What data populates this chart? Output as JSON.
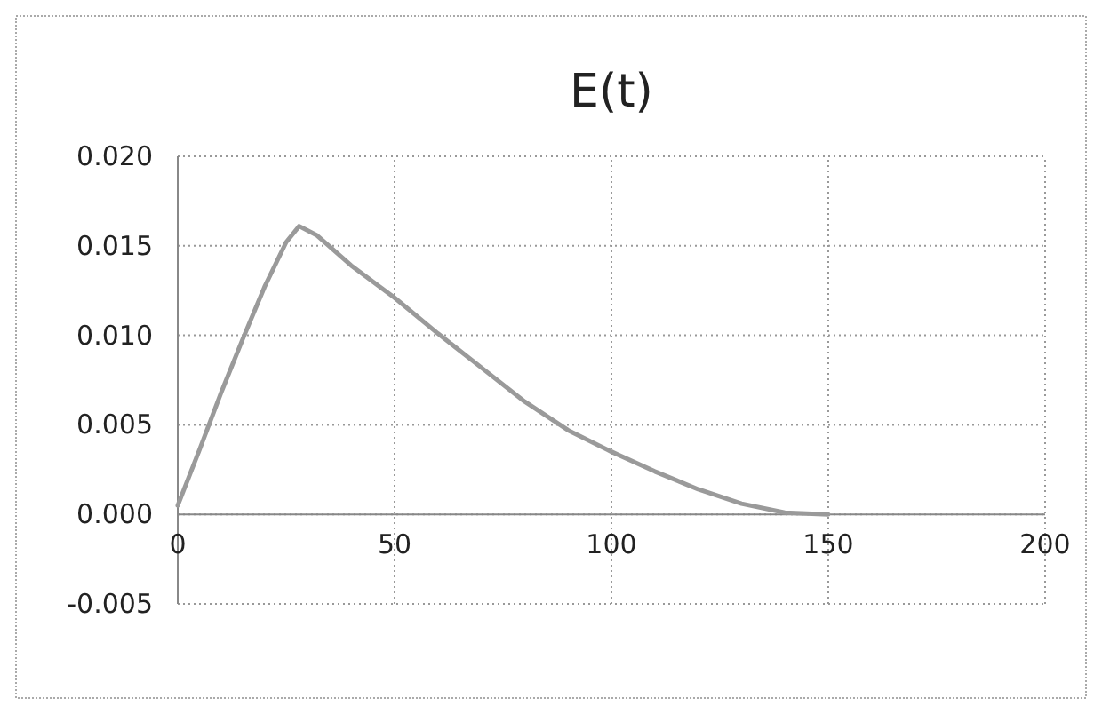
{
  "chart_data": {
    "type": "line",
    "title": "E(t)",
    "x": [
      0,
      5,
      10,
      15,
      20,
      25,
      28,
      32,
      40,
      50,
      60,
      70,
      80,
      90,
      100,
      110,
      120,
      130,
      140,
      150
    ],
    "series": [
      {
        "color": "#9a9a9a",
        "values": [
          0.0005,
          0.0036,
          0.0068,
          0.0098,
          0.0127,
          0.0152,
          0.0161,
          0.0156,
          0.0139,
          0.0121,
          0.0101,
          0.0082,
          0.0063,
          0.0047,
          0.0035,
          0.0024,
          0.0014,
          0.0006,
          0.0001,
          0.0
        ]
      }
    ],
    "xlim": [
      0,
      200
    ],
    "xticks": [
      0,
      50,
      100,
      150,
      200
    ],
    "ylim": [
      -0.005,
      0.02
    ],
    "yticks": [
      {
        "value": -0.005,
        "label": "-0.005"
      },
      {
        "value": 0,
        "label": "0.000"
      },
      {
        "value": 0.005,
        "label": "0.005"
      },
      {
        "value": 0.01,
        "label": "0.010"
      },
      {
        "value": 0.015,
        "label": "0.015"
      },
      {
        "value": 0.02,
        "label": "0.020"
      }
    ],
    "grid": true,
    "marker": "none",
    "line_style": "solid"
  }
}
